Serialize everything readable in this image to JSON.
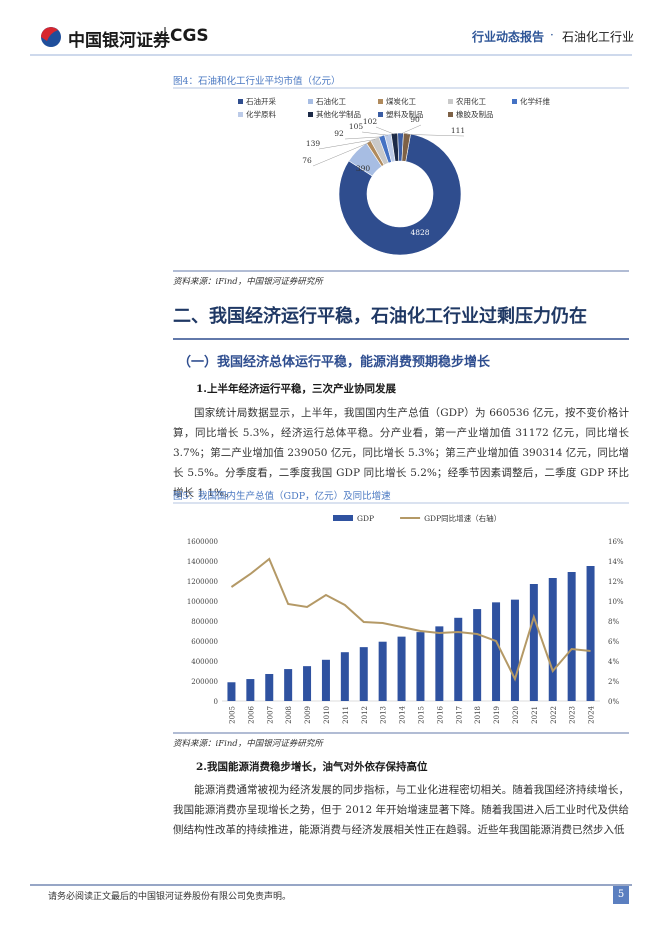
{
  "header": {
    "logo_cn": "中国银河证券",
    "logo_en": "CGS",
    "report_type": "行业动态报告",
    "separator": "·",
    "sector": "石油化工行业"
  },
  "chart_data": [
    {
      "type": "pie",
      "donut": true,
      "title": "图4：石油和化工行业平均市值（亿元）",
      "categories": [
        "石油开采",
        "石油化工",
        "煤炭化工",
        "农用化工",
        "化学纤维",
        "化学原料",
        "其他化学制品",
        "塑料及制品",
        "橡胶及制品"
      ],
      "values": [
        4828,
        390,
        76,
        139,
        92,
        105,
        102,
        90,
        111
      ],
      "colors": [
        "#2f4d8e",
        "#a7bde3",
        "#b08a5c",
        "#c9c9c9",
        "#4472c4",
        "#bccbe8",
        "#1c2a47",
        "#3b5da3",
        "#7d6146"
      ],
      "legend": "top",
      "source": "资料来源：iFind，中国银河证券研究所"
    },
    {
      "type": "combo",
      "title": "图5：我国国内生产总值（GDP，亿元）及同比增速",
      "categories": [
        "2005",
        "2006",
        "2007",
        "2008",
        "2009",
        "2010",
        "2011",
        "2012",
        "2013",
        "2014",
        "2015",
        "2016",
        "2017",
        "2018",
        "2019",
        "2020",
        "2021",
        "2022",
        "2023",
        "2024"
      ],
      "series": [
        {
          "name": "GDP",
          "type": "bar",
          "color": "#2f52a0",
          "values": [
            187319,
            219439,
            270092,
            319245,
            348518,
            412119,
            487940,
            538580,
            592963,
            643563,
            688858,
            746395,
            832036,
            919281,
            986515,
            1013567,
            1170000,
            1230000,
            1290000,
            1350000
          ]
        },
        {
          "name": "GDP同比增速（右轴）",
          "type": "line",
          "axis": "y2",
          "color": "#b49966",
          "values": [
            11.4,
            12.7,
            14.2,
            9.7,
            9.4,
            10.6,
            9.6,
            7.9,
            7.8,
            7.4,
            7.0,
            6.8,
            6.9,
            6.7,
            6.0,
            2.2,
            8.4,
            3.0,
            5.2,
            5.0
          ]
        }
      ],
      "ylim": [
        0,
        1600000
      ],
      "yticks": [
        0,
        200000,
        400000,
        600000,
        800000,
        1000000,
        1200000,
        1400000,
        1600000
      ],
      "y2lim": [
        0,
        16
      ],
      "y2ticks": [
        {
          "value": 0,
          "label": "0%"
        },
        {
          "value": 2,
          "label": "2%"
        },
        {
          "value": 4,
          "label": "4%"
        },
        {
          "value": 6,
          "label": "6%"
        },
        {
          "value": 8,
          "label": "8%"
        },
        {
          "value": 10,
          "label": "10%"
        },
        {
          "value": 12,
          "label": "12%"
        },
        {
          "value": 14,
          "label": "14%"
        },
        {
          "value": 16,
          "label": "16%"
        }
      ],
      "legend": "top",
      "source": "资料来源：iFind，中国银河证券研究所"
    }
  ],
  "sections": {
    "h1": "二、我国经济运行平稳，石油化工行业过剩压力仍在",
    "h2": "（一）我国经济总体运行平稳，能源消费预期稳步增长",
    "h3_1": "1.上半年经济运行平稳，三次产业协同发展",
    "p1": "国家统计局数据显示，上半年，我国国内生产总值（GDP）为 660536 亿元，按不变价格计算，同比增长 5.3%，经济运行总体平稳。分产业看，第一产业增加值 31172 亿元，同比增长 3.7%；第二产业增加值 239050 亿元，同比增长 5.3%；第三产业增加值 390314 亿元，同比增长 5.5%。分季度看，二季度我国 GDP 同比增长 5.2%；经季节因素调整后，二季度 GDP 环比增长 1.1%。",
    "h3_2": "2.我国能源消费稳步增长，油气对外依存保持高位",
    "p2": "能源消费通常被视为经济发展的同步指标，与工业化进程密切相关。随着我国经济持续增长，我国能源消费亦呈现增长之势，但于 2012 年开始增速显著下降。随着我国进入后工业时代及供给侧结构性改革的持续推进，能源消费与经济发展相关性正在趋弱。近些年我国能源消费已然步入低"
  },
  "footer": {
    "disclaimer": "请务必阅读正文最后的中国银河证券股份有限公司免责声明。",
    "page": 5
  }
}
